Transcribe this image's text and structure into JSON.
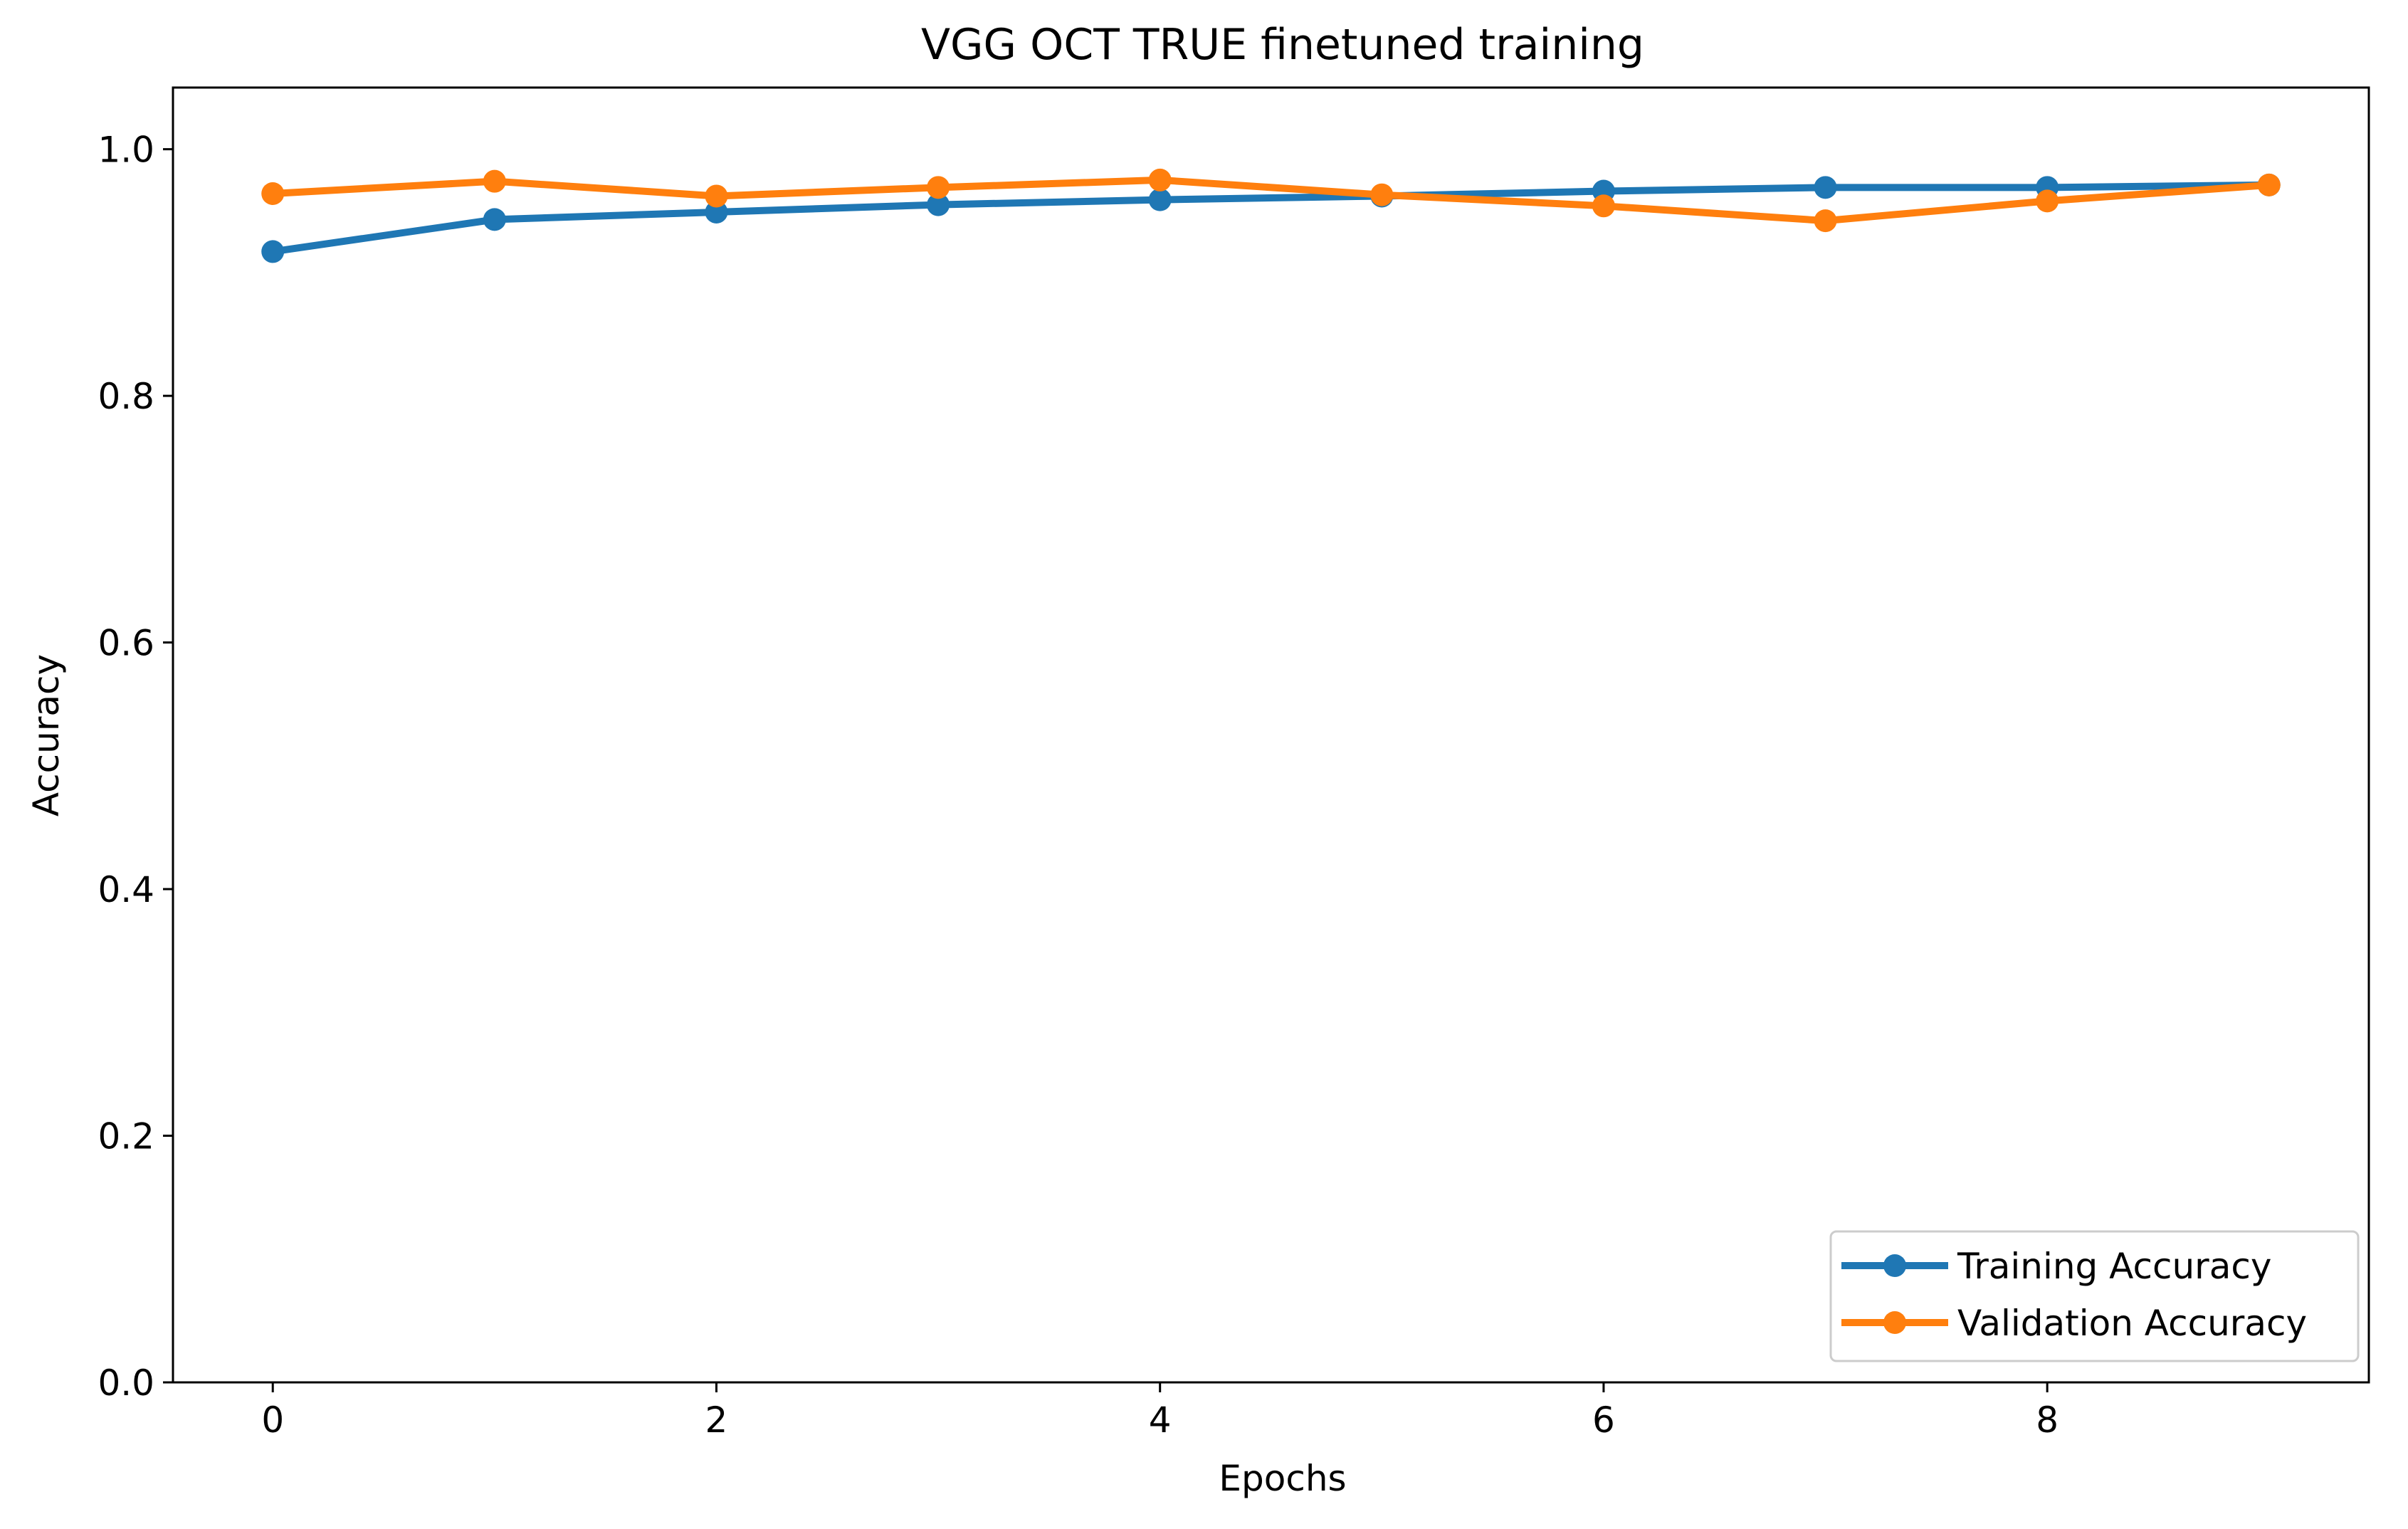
{
  "chart_data": {
    "type": "line",
    "title": "VGG OCT TRUE finetuned training",
    "xlabel": "Epochs",
    "ylabel": "Accuracy",
    "x": [
      0,
      1,
      2,
      3,
      4,
      5,
      6,
      7,
      8,
      9
    ],
    "xlim": [
      -0.45,
      9.45
    ],
    "ylim": [
      0.0,
      1.05
    ],
    "xticks": [
      0,
      2,
      4,
      6,
      8
    ],
    "xtick_labels": [
      "0",
      "2",
      "4",
      "6",
      "8"
    ],
    "yticks": [
      0.0,
      0.2,
      0.4,
      0.6,
      0.8,
      1.0
    ],
    "ytick_labels": [
      "0.0",
      "0.2",
      "0.4",
      "0.6",
      "0.8",
      "1.0"
    ],
    "grid": false,
    "legend_position": "lower-right",
    "series": [
      {
        "name": "Training Accuracy",
        "color": "#1f77b4",
        "marker": "circle",
        "values": [
          0.917,
          0.943,
          0.949,
          0.955,
          0.959,
          0.962,
          0.966,
          0.969,
          0.969,
          0.971
        ]
      },
      {
        "name": "Validation Accuracy",
        "color": "#ff7f0e",
        "marker": "circle",
        "values": [
          0.964,
          0.974,
          0.962,
          0.969,
          0.975,
          0.963,
          0.954,
          0.942,
          0.958,
          0.971
        ]
      }
    ]
  }
}
